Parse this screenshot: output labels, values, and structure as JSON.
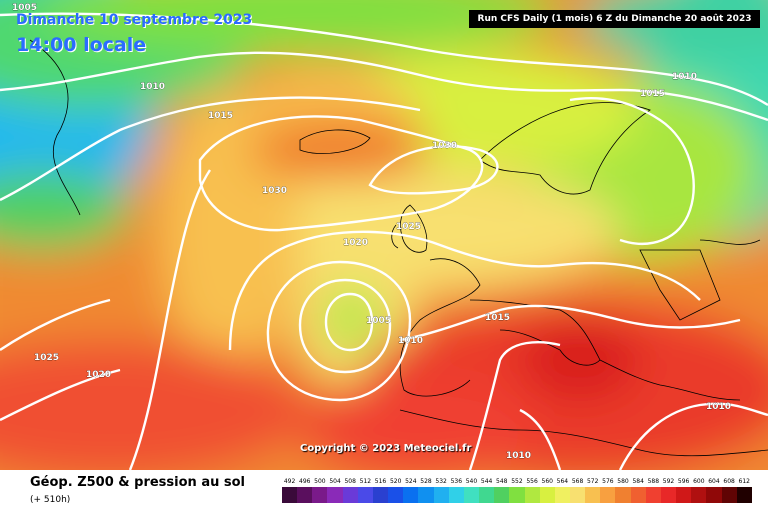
{
  "header": {
    "date": "Dimanche 10 septembre 2023",
    "time": "14:00 locale",
    "run": "Run CFS Daily (1 mois) 6 Z du Dimanche 20 août 2023"
  },
  "copyright": "Copyright © 2023 Meteociel.fr",
  "footer": {
    "title": "Géop. Z500 & pression au sol",
    "subtitle": "(+ 510h)"
  },
  "isobars": [
    {
      "value": "1005"
    },
    {
      "value": "1010"
    },
    {
      "value": "1015"
    },
    {
      "value": "1030"
    },
    {
      "value": "1030"
    },
    {
      "value": "1010"
    },
    {
      "value": "1015"
    },
    {
      "value": "1025"
    },
    {
      "value": "1020"
    },
    {
      "value": "1005"
    },
    {
      "value": "1010"
    },
    {
      "value": "1015"
    },
    {
      "value": "1025"
    },
    {
      "value": "1020"
    },
    {
      "value": "1010"
    },
    {
      "value": "1010"
    }
  ],
  "legend": {
    "labels": [
      "492",
      "496",
      "500",
      "504",
      "508",
      "512",
      "516",
      "520",
      "524",
      "528",
      "532",
      "536",
      "540",
      "544",
      "548",
      "552",
      "556",
      "560",
      "564",
      "568",
      "572",
      "576",
      "580",
      "584",
      "588",
      "592",
      "596",
      "600",
      "604",
      "608",
      "612"
    ],
    "colors": [
      "#3a0a3a",
      "#5a0f5e",
      "#7a1a8a",
      "#8a2ab8",
      "#6a3ad8",
      "#4a4ae8",
      "#2a40d0",
      "#1a50e8",
      "#0a70f0",
      "#1090f0",
      "#20b0f0",
      "#30d0e8",
      "#40e0c0",
      "#40d890",
      "#50d060",
      "#80e040",
      "#b0e840",
      "#d8f040",
      "#f0f060",
      "#f8e070",
      "#f8c050",
      "#f8a040",
      "#f08030",
      "#f06030",
      "#f04030",
      "#e82828",
      "#d01818",
      "#b01010",
      "#900808",
      "#600404",
      "#200000"
    ]
  }
}
